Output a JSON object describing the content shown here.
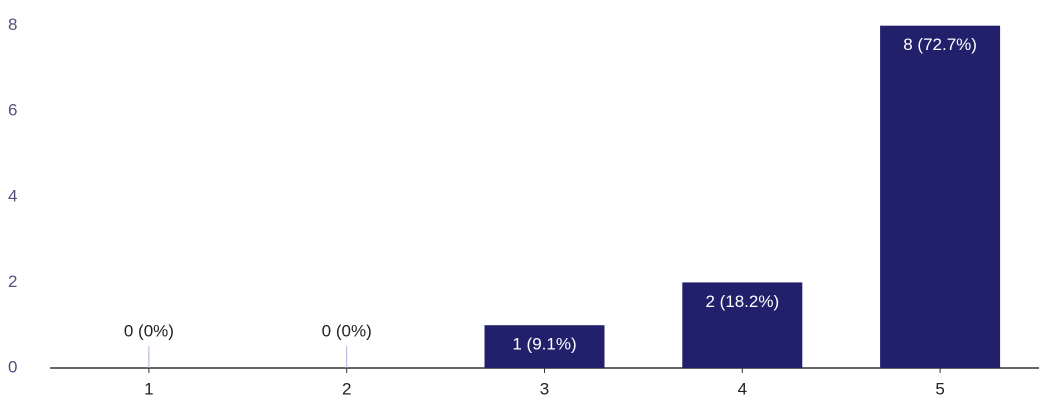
{
  "chart_data": {
    "type": "bar",
    "categories": [
      "1",
      "2",
      "3",
      "4",
      "5"
    ],
    "values": [
      0,
      0,
      1,
      2,
      8
    ],
    "value_labels": [
      "0 (0%)",
      "0 (0%)",
      "1 (9.1%)",
      "2 (18.2%)",
      "8 (72.7%)"
    ],
    "color": "#22206b",
    "ylim": [
      0,
      8.6
    ],
    "yticks": [
      0,
      2,
      4,
      6,
      8
    ],
    "grid": false
  }
}
